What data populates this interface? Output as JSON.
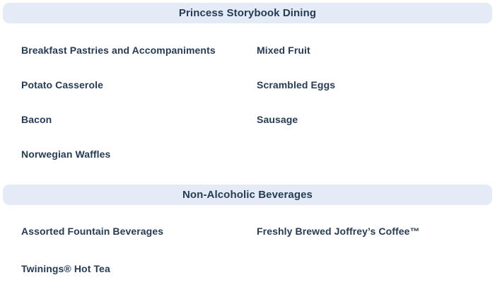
{
  "theme": {
    "header_bg": "#e4ebf6",
    "text_color": "#253b56",
    "page_bg": "#ffffff"
  },
  "sections": [
    {
      "title": "Princess Storybook Dining",
      "items": [
        "Breakfast Pastries and Accompaniments",
        "Mixed Fruit",
        "Potato Casserole",
        "Scrambled Eggs",
        "Bacon",
        "Sausage",
        "Norwegian Waffles"
      ]
    },
    {
      "title": "Non-Alcoholic Beverages",
      "items": [
        "Assorted Fountain Beverages",
        "Freshly Brewed Joffrey’s Coffee™",
        "Twinings® Hot Tea"
      ]
    }
  ]
}
